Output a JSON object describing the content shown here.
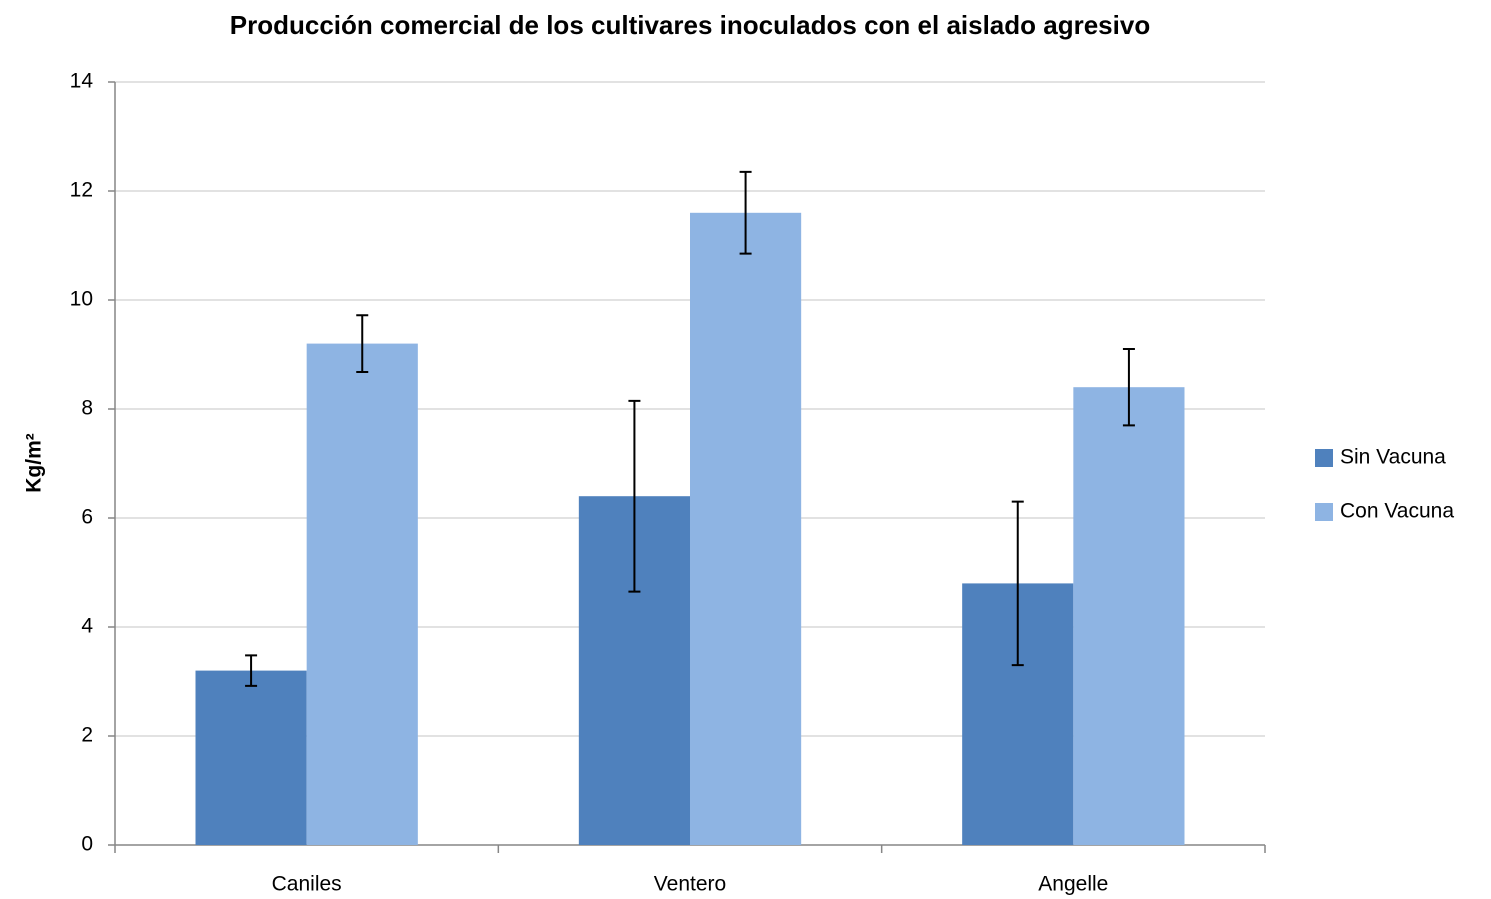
{
  "chart_data": {
    "type": "bar",
    "title": "Producción comercial de los cultivares inoculados con el aislado agresivo",
    "y_label": "Kg/m²",
    "categories": [
      "Caniles",
      "Ventero",
      "Angelle"
    ],
    "series": [
      {
        "name": "Sin Vacuna",
        "color": "#4f81bd",
        "values": [
          3.2,
          6.4,
          4.8
        ],
        "errors": [
          0.28,
          1.75,
          1.5
        ]
      },
      {
        "name": "Con Vacuna",
        "color": "#8eb4e3",
        "values": [
          9.2,
          11.6,
          8.4
        ],
        "errors": [
          0.52,
          0.75,
          0.7
        ]
      }
    ],
    "ylim": [
      0,
      14
    ],
    "yticks": [
      0,
      2,
      4,
      6,
      8,
      10,
      12,
      14
    ],
    "grid": true,
    "legend": "right"
  }
}
